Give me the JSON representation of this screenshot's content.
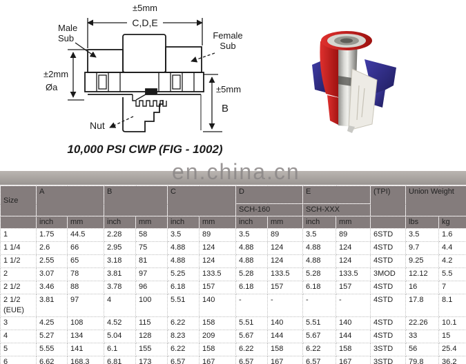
{
  "diagram": {
    "caption": "10,000 PSI CWP (FIG - 1002)",
    "tol_top": "±5mm",
    "dim_width": "C,D,E",
    "male_sub_line1": "Male",
    "male_sub_line2": "Sub",
    "female_sub_line1": "Female",
    "female_sub_line2": "Sub",
    "tol_left": "±2mm",
    "diameter": "Øa",
    "tol_right": "±5mm",
    "dim_height": "B",
    "nut_label": "Nut"
  },
  "watermark": "en.china.cn",
  "colors": {
    "header_gray": "#847c7c",
    "photo_red": "#c22220",
    "photo_navy": "#2e2b80",
    "photo_silver": "#b5b5b1"
  },
  "table": {
    "col_size": "Size",
    "col_a": "A",
    "col_b": "B",
    "col_c": "C",
    "col_d": "D",
    "col_e": "E",
    "d_schedule": "SCH-160",
    "e_schedule": "SCH-XXX",
    "col_tpi": "(TPI)",
    "col_union_weight": "Union Weight",
    "unit_inch": "inch",
    "unit_mm": "mm",
    "unit_lbs": "lbs",
    "unit_kg": "kg",
    "rows": [
      [
        "1",
        "1.75",
        "44.5",
        "2.28",
        "58",
        "3.5",
        "89",
        "3.5",
        "89",
        "3.5",
        "89",
        "6STD",
        "3.5",
        "1.6"
      ],
      [
        "1 1/4",
        "2.6",
        "66",
        "2.95",
        "75",
        "4.88",
        "124",
        "4.88",
        "124",
        "4.88",
        "124",
        "4STD",
        "9.7",
        "4.4"
      ],
      [
        "1 1/2",
        "2.55",
        "65",
        "3.18",
        "81",
        "4.88",
        "124",
        "4.88",
        "124",
        "4.88",
        "124",
        "4STD",
        "9.25",
        "4.2"
      ],
      [
        "2",
        "3.07",
        "78",
        "3.81",
        "97",
        "5.25",
        "133.5",
        "5.28",
        "133.5",
        "5.28",
        "133.5",
        "3MOD",
        "12.12",
        "5.5"
      ],
      [
        "2 1/2",
        "3.46",
        "88",
        "3.78",
        "96",
        "6.18",
        "157",
        "6.18",
        "157",
        "6.18",
        "157",
        "4STD",
        "16",
        "7"
      ],
      [
        "2 1/2 (EUE)",
        "3.81",
        "97",
        "4",
        "100",
        "5.51",
        "140",
        "-",
        "-",
        "-",
        "-",
        "4STD",
        "17.8",
        "8.1"
      ],
      [
        "3",
        "4.25",
        "108",
        "4.52",
        "115",
        "6.22",
        "158",
        "5.51",
        "140",
        "5.51",
        "140",
        "4STD",
        "22.26",
        "10.1"
      ],
      [
        "4",
        "5.27",
        "134",
        "5.04",
        "128",
        "8.23",
        "209",
        "5.67",
        "144",
        "5.67",
        "144",
        "4STD",
        "33",
        "15"
      ],
      [
        "5",
        "5.55",
        "141",
        "6.1",
        "155",
        "6.22",
        "158",
        "6.22",
        "158",
        "6.22",
        "158",
        "3STD",
        "56",
        "25.4"
      ],
      [
        "6",
        "6.62",
        "168.3",
        "6.81",
        "173",
        "6.57",
        "167",
        "6.57",
        "167",
        "6.57",
        "167",
        "3STD",
        "79.8",
        "36.2"
      ]
    ]
  }
}
